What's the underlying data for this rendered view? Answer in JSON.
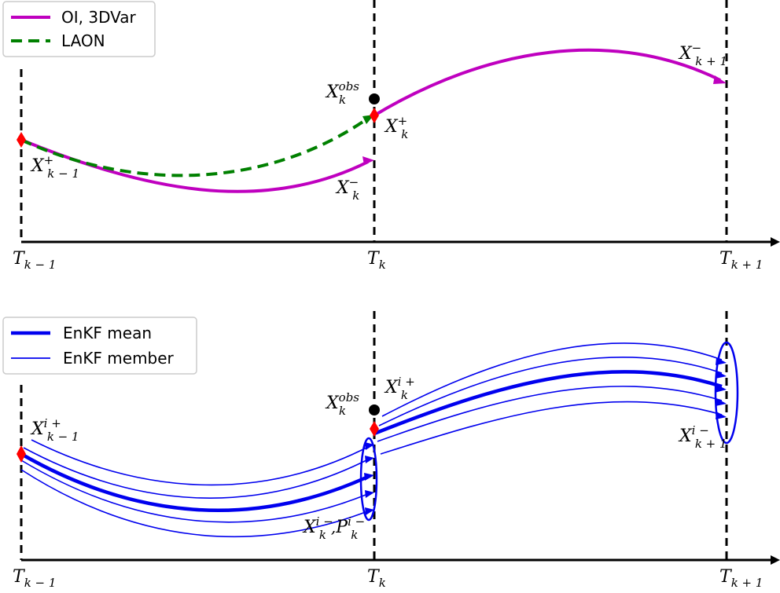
{
  "colors": {
    "oi": "#bf00bf",
    "laon": "#008000",
    "enkf": "#0000ee",
    "analysis_marker": "#ff0000",
    "observation": "#000000",
    "axis": "#000000"
  },
  "top_panel": {
    "legend": [
      {
        "label": "OI, 3DVar",
        "color": "#bf00bf",
        "style": "solid"
      },
      {
        "label": "LAON",
        "color": "#008000",
        "style": "dashed"
      }
    ],
    "time_ticks": [
      {
        "base": "T",
        "sub": "k − 1"
      },
      {
        "base": "T",
        "sub": "k"
      },
      {
        "base": "T",
        "sub": "k + 1"
      }
    ],
    "labels": {
      "x_prev_plus": {
        "base": "X",
        "sup": "+",
        "sub": "k − 1"
      },
      "x_obs": {
        "base": "X",
        "sup": "obs",
        "sub": "k"
      },
      "x_k_plus": {
        "base": "X",
        "sup": "+",
        "sub": "k"
      },
      "x_k_minus": {
        "base": "X",
        "sup": "−",
        "sub": "k"
      },
      "x_next_minus": {
        "base": "X",
        "sup": "−",
        "sub": "k + 1"
      }
    }
  },
  "bottom_panel": {
    "legend": [
      {
        "label": "EnKF mean",
        "color": "#0000ee",
        "style": "thick"
      },
      {
        "label": "EnKF member",
        "color": "#0000ee",
        "style": "thin"
      }
    ],
    "time_ticks": [
      {
        "base": "T",
        "sub": "k − 1"
      },
      {
        "base": "T",
        "sub": "k"
      },
      {
        "base": "T",
        "sub": "k + 1"
      }
    ],
    "labels": {
      "x_prev_plus": {
        "base": "X",
        "sup": "i +",
        "sub": "k − 1"
      },
      "x_obs": {
        "base": "X",
        "sup": "obs",
        "sub": "k"
      },
      "x_k_plus": {
        "base": "X",
        "sup": "i +",
        "sub": "k"
      },
      "x_k_minus": {
        "base": "X",
        "sup": "i −",
        "sub": "k",
        "extra_sep": ",",
        "extra_base": "P",
        "extra_sup": "i −",
        "extra_sub": "k"
      },
      "x_next_minus": {
        "base": "X",
        "sup": "i −",
        "sub": "k + 1"
      }
    }
  }
}
